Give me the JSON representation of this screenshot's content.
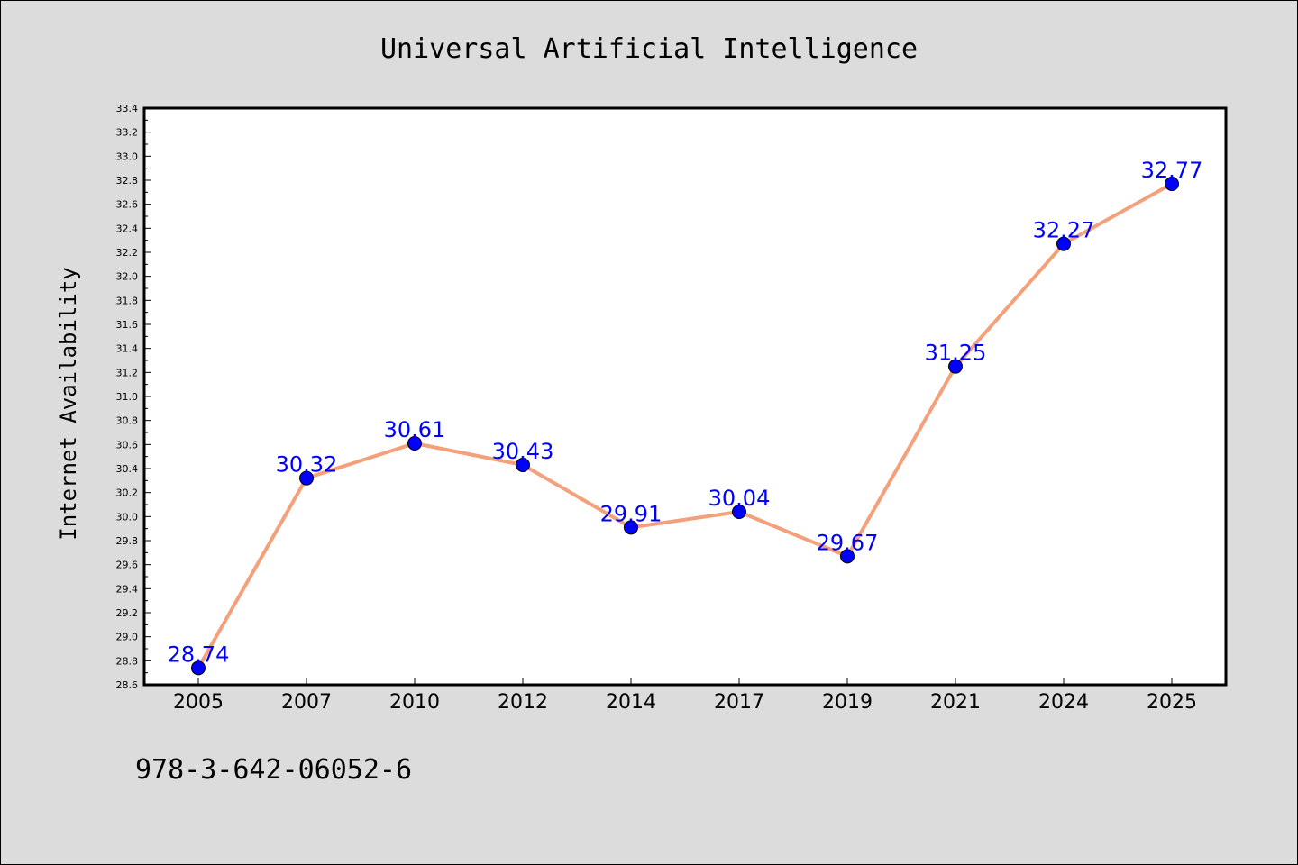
{
  "footer_text": "978-3-642-06052-6",
  "colors": {
    "line": "#f4a07a",
    "marker": "#0000ff",
    "label": "#0000ff",
    "plot_bg": "#ffffff",
    "figure_bg": "#dcdcdc"
  },
  "chart_data": {
    "type": "line",
    "title": "Universal Artificial Intelligence",
    "xlabel": "",
    "ylabel": "Internet Availability",
    "categories": [
      "2005",
      "2007",
      "2010",
      "2012",
      "2014",
      "2017",
      "2019",
      "2021",
      "2024",
      "2025"
    ],
    "values": [
      28.74,
      30.32,
      30.61,
      30.43,
      29.91,
      30.04,
      29.67,
      31.25,
      32.27,
      32.77
    ],
    "data_labels": [
      "28.74",
      "30.32",
      "30.61",
      "30.43",
      "29.91",
      "30.04",
      "29.67",
      "31.25",
      "32.27",
      "32.77"
    ],
    "ylim": [
      28.6,
      33.4
    ],
    "yticks": [
      "28.6",
      "28.8",
      "29.0",
      "29.2",
      "29.4",
      "29.6",
      "29.8",
      "30.0",
      "30.2",
      "30.4",
      "30.6",
      "30.8",
      "31.0",
      "31.2",
      "31.4",
      "31.6",
      "31.8",
      "32.0",
      "32.2",
      "32.4",
      "32.6",
      "32.8",
      "33.0",
      "33.2",
      "33.4"
    ],
    "grid": false,
    "legend": "none"
  }
}
